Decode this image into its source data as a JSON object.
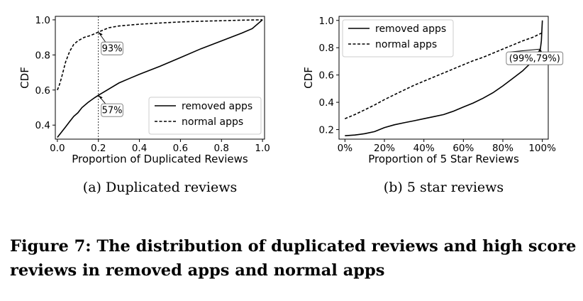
{
  "chart_data": [
    {
      "type": "line",
      "subcaption": "(a)  Duplicated reviews",
      "xlabel": "Proportion of Duplicated Reviews",
      "ylabel": "CDF",
      "xlim": [
        -0.01,
        1.01
      ],
      "ylim": [
        0.32,
        1.02
      ],
      "xticks": [
        0.0,
        0.2,
        0.4,
        0.6,
        0.8,
        1.0
      ],
      "xtick_labels": [
        "0.0",
        "0.2",
        "0.4",
        "0.6",
        "0.8",
        "1.0"
      ],
      "yticks": [
        0.4,
        0.6,
        0.8,
        1.0
      ],
      "ytick_labels": [
        "0.4",
        "0.6",
        "0.8",
        "1.0"
      ],
      "legend_position": "lower-right",
      "vline_x": 0.2,
      "annotations": [
        {
          "text": "93%",
          "x": 0.2,
          "y": 0.93
        },
        {
          "text": "57%",
          "x": 0.2,
          "y": 0.57
        }
      ],
      "series": [
        {
          "name": "removed apps",
          "style": "solid",
          "x": [
            0.0,
            0.02,
            0.04,
            0.06,
            0.08,
            0.1,
            0.12,
            0.15,
            0.18,
            0.2,
            0.25,
            0.3,
            0.35,
            0.4,
            0.5,
            0.6,
            0.7,
            0.8,
            0.9,
            0.95,
            1.0
          ],
          "y": [
            0.33,
            0.36,
            0.39,
            0.42,
            0.45,
            0.47,
            0.5,
            0.53,
            0.555,
            0.57,
            0.605,
            0.64,
            0.665,
            0.69,
            0.735,
            0.785,
            0.835,
            0.88,
            0.925,
            0.95,
            1.0
          ]
        },
        {
          "name": "normal apps",
          "style": "dashed",
          "x": [
            0.0,
            0.01,
            0.02,
            0.04,
            0.06,
            0.08,
            0.1,
            0.13,
            0.16,
            0.2,
            0.25,
            0.3,
            0.4,
            0.5,
            0.6,
            0.7,
            0.8,
            0.9,
            1.0
          ],
          "y": [
            0.6,
            0.63,
            0.67,
            0.76,
            0.82,
            0.86,
            0.88,
            0.9,
            0.91,
            0.93,
            0.955,
            0.965,
            0.975,
            0.982,
            0.988,
            0.992,
            0.995,
            0.998,
            1.0
          ]
        }
      ]
    },
    {
      "type": "line",
      "subcaption": "(b)  5 star reviews",
      "xlabel": "Proportion of 5 Star Reviews",
      "ylabel": "CDF",
      "xlim": [
        -0.03,
        1.03
      ],
      "ylim": [
        0.13,
        1.03
      ],
      "xticks": [
        0.0,
        0.2,
        0.4,
        0.6,
        0.8,
        1.0
      ],
      "xtick_labels": [
        "0%",
        "20%",
        "40%",
        "60%",
        "80%",
        "100%"
      ],
      "yticks": [
        0.2,
        0.4,
        0.6,
        0.8,
        1.0
      ],
      "ytick_labels": [
        "0.2",
        "0.4",
        "0.6",
        "0.8",
        "1.0"
      ],
      "legend_position": "top-left",
      "annotations": [
        {
          "text": "(99%,79%)",
          "x": 0.99,
          "y": 0.79
        }
      ],
      "series": [
        {
          "name": "removed apps",
          "style": "solid",
          "x": [
            0.0,
            0.05,
            0.1,
            0.15,
            0.2,
            0.25,
            0.3,
            0.35,
            0.4,
            0.45,
            0.5,
            0.55,
            0.6,
            0.65,
            0.7,
            0.75,
            0.8,
            0.85,
            0.9,
            0.95,
            0.99,
            0.995,
            1.0
          ],
          "y": [
            0.155,
            0.16,
            0.17,
            0.185,
            0.215,
            0.235,
            0.25,
            0.265,
            0.28,
            0.295,
            0.31,
            0.335,
            0.365,
            0.395,
            0.43,
            0.47,
            0.52,
            0.575,
            0.63,
            0.7,
            0.79,
            0.85,
            1.0
          ]
        },
        {
          "name": "normal apps",
          "style": "dashed",
          "x": [
            0.0,
            0.05,
            0.1,
            0.15,
            0.2,
            0.25,
            0.3,
            0.35,
            0.4,
            0.45,
            0.5,
            0.55,
            0.6,
            0.65,
            0.7,
            0.75,
            0.8,
            0.85,
            0.9,
            0.95,
            1.0
          ],
          "y": [
            0.28,
            0.31,
            0.345,
            0.38,
            0.42,
            0.455,
            0.49,
            0.525,
            0.555,
            0.585,
            0.615,
            0.645,
            0.675,
            0.705,
            0.73,
            0.76,
            0.79,
            0.82,
            0.85,
            0.875,
            0.91
          ]
        }
      ]
    }
  ],
  "caption": "Figure 7: The distribution of duplicated reviews and high score reviews in removed apps and normal apps"
}
